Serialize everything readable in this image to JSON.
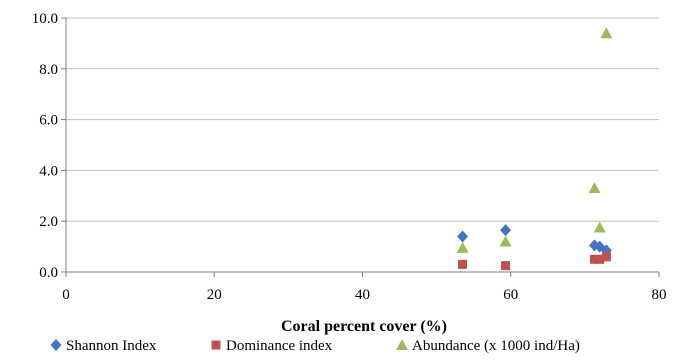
{
  "chart_data": {
    "type": "scatter",
    "title": "",
    "xlabel": "Coral percent cover (%)",
    "ylabel": "",
    "xlim": [
      0,
      80
    ],
    "ylim": [
      0,
      10
    ],
    "x_ticks": [
      "0",
      "20",
      "40",
      "60",
      "80"
    ],
    "y_ticks": [
      "0.0",
      "2.0",
      "4.0",
      "6.0",
      "8.0",
      "10.0"
    ],
    "grid": "horizontal",
    "legend_position": "bottom",
    "series": [
      {
        "name": "Shannon Index",
        "marker": "diamond",
        "color": "#4472C4",
        "points": [
          {
            "x": 53.5,
            "y": 1.4
          },
          {
            "x": 59.3,
            "y": 1.65
          },
          {
            "x": 71.3,
            "y": 1.05
          },
          {
            "x": 72.0,
            "y": 1.0
          },
          {
            "x": 72.9,
            "y": 0.85
          }
        ]
      },
      {
        "name": "Dominance index",
        "marker": "square",
        "color": "#C0504D",
        "points": [
          {
            "x": 53.5,
            "y": 0.3
          },
          {
            "x": 59.3,
            "y": 0.25
          },
          {
            "x": 71.3,
            "y": 0.5
          },
          {
            "x": 72.0,
            "y": 0.5
          },
          {
            "x": 72.9,
            "y": 0.6
          }
        ]
      },
      {
        "name": "Abundance (x 1000 ind/Ha)",
        "marker": "triangle",
        "color": "#9BBB59",
        "points": [
          {
            "x": 53.5,
            "y": 0.95
          },
          {
            "x": 59.3,
            "y": 1.2
          },
          {
            "x": 71.3,
            "y": 3.3
          },
          {
            "x": 72.0,
            "y": 1.75
          },
          {
            "x": 72.9,
            "y": 9.4
          }
        ]
      }
    ]
  }
}
